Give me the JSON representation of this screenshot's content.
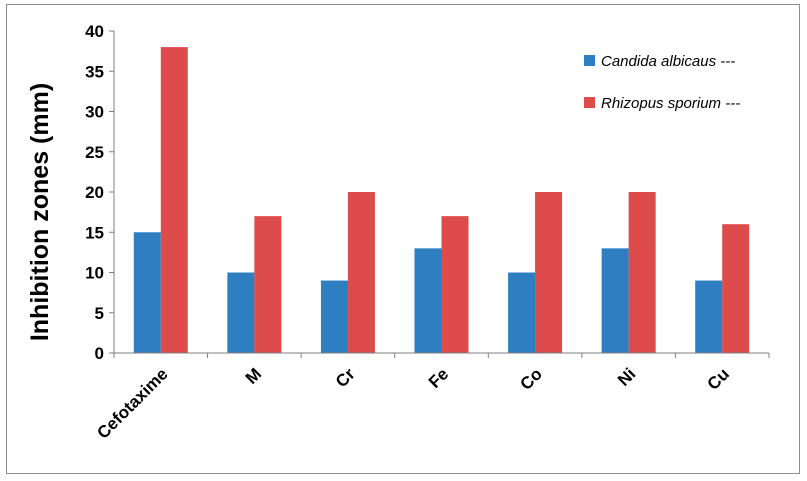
{
  "chart_data": {
    "type": "bar",
    "title": "",
    "xlabel": "",
    "ylabel": "Inhibition zones (mm)",
    "ylim": [
      0,
      40
    ],
    "yticks": [
      0,
      5,
      10,
      15,
      20,
      25,
      30,
      35,
      40
    ],
    "grid": false,
    "legend_position": "top-right",
    "categories": [
      "Cefotaxime",
      "M",
      "Cr",
      "Fe",
      "Co",
      "Ni",
      "Cu"
    ],
    "series": [
      {
        "name": "Candida albicaus ---",
        "color": "#2e7fc1",
        "values": [
          15,
          10,
          9,
          13,
          10,
          13,
          9
        ]
      },
      {
        "name": "Rhizopus sporium ---",
        "color": "#dd4b4b",
        "values": [
          38,
          17,
          20,
          17,
          20,
          20,
          16
        ]
      }
    ]
  }
}
